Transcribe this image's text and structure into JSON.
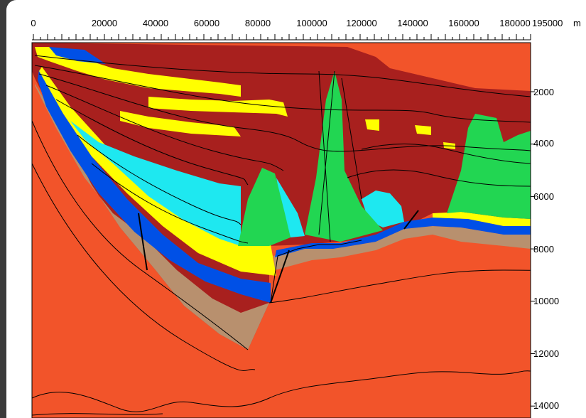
{
  "x_axis": {
    "unit": "m",
    "ticks": [
      {
        "value": 0,
        "label": "0"
      },
      {
        "value": 20000,
        "label": "20000"
      },
      {
        "value": 40000,
        "label": "40000"
      },
      {
        "value": 60000,
        "label": "60000"
      },
      {
        "value": 80000,
        "label": "80000"
      },
      {
        "value": 100000,
        "label": "100000"
      },
      {
        "value": 120000,
        "label": "120000"
      },
      {
        "value": 140000,
        "label": "140000"
      },
      {
        "value": 160000,
        "label": "160000"
      },
      {
        "value": 180000,
        "label": "180000"
      },
      {
        "value": 195000,
        "label": "195000"
      }
    ]
  },
  "y_axis": {
    "ticks": [
      {
        "value": 2000,
        "label": "2000"
      },
      {
        "value": 4000,
        "label": "4000"
      },
      {
        "value": 6000,
        "label": "6000"
      },
      {
        "value": 8000,
        "label": "8000"
      },
      {
        "value": 10000,
        "label": "10000"
      },
      {
        "value": 12000,
        "label": "12000"
      },
      {
        "value": 14000,
        "label": "14000"
      }
    ]
  },
  "layer_colors": {
    "basement": "#f2542a",
    "maroon": "#a8201e",
    "yellow": "#ffff00",
    "cyan": "#1ee8f0",
    "blue": "#0050e6",
    "green": "#22d652",
    "tan": "#b8906e"
  }
}
